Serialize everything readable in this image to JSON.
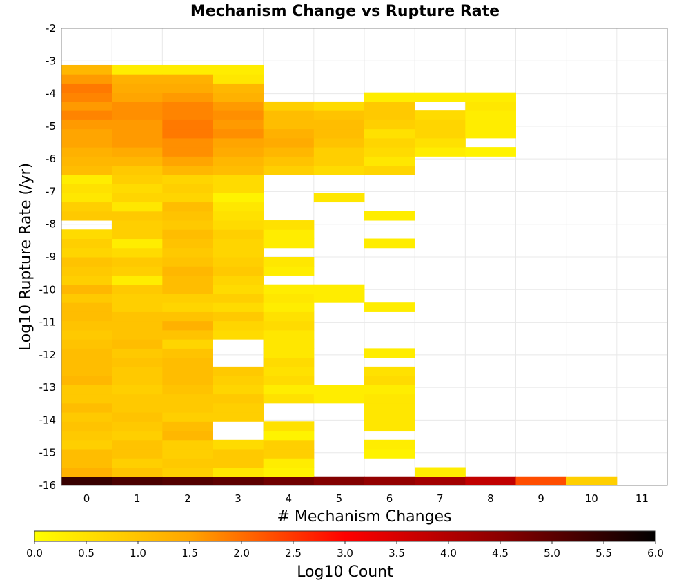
{
  "chart_data": {
    "type": "heatmap",
    "title": "Mechanism Change vs Rupture Rate",
    "xlabel": "# Mechanism Changes",
    "ylabel": "Log10 Rupture Rate (/yr)",
    "x_categories": [
      "0",
      "1",
      "2",
      "3",
      "4",
      "5",
      "6",
      "7",
      "8",
      "9",
      "10",
      "11"
    ],
    "ylim": [
      -16,
      -2
    ],
    "y_ticks": [
      "-2",
      "-3",
      "-4",
      "-5",
      "-6",
      "-7",
      "-8",
      "-9",
      "-10",
      "-11",
      "-12",
      "-13",
      "-14",
      "-15",
      "-16"
    ],
    "bin_size": 0.28,
    "bins_start": -16.0,
    "grid": true,
    "colorbar": {
      "label": "Log10 Count",
      "range": [
        0.0,
        6.0
      ],
      "ticks": [
        "0.0",
        "0.5",
        "1.0",
        "1.5",
        "2.0",
        "2.5",
        "3.0",
        "3.5",
        "4.0",
        "4.5",
        "5.0",
        "5.5",
        "6.0"
      ],
      "colors": [
        "#ffff00",
        "#ffa500",
        "#ff0000",
        "#8b0000",
        "#000000"
      ]
    },
    "series": [
      {
        "x": "0",
        "values": [
          5.4,
          1.3,
          1.1,
          1.1,
          0.8,
          0.9,
          1.0,
          0.9,
          1.1,
          0.9,
          0.9,
          1.2,
          1.1,
          1.1,
          1.1,
          1.0,
          0.9,
          1.0,
          1.1,
          1.1,
          0.9,
          1.2,
          0.8,
          0.9,
          1.0,
          0.7,
          0.8,
          0.6,
          null,
          0.9,
          0.8,
          0.4,
          0.5,
          0.3,
          1.1,
          1.2,
          1.3,
          1.5,
          1.5,
          1.6,
          1.8,
          1.6,
          1.8,
          1.9,
          1.6,
          1.2
        ]
      },
      {
        "x": "1",
        "values": [
          5.2,
          1.0,
          0.8,
          1.0,
          1.0,
          0.8,
          0.9,
          1.0,
          0.9,
          0.9,
          0.8,
          0.9,
          0.9,
          1.0,
          0.9,
          1.1,
          1.0,
          1.0,
          1.0,
          0.8,
          0.8,
          0.9,
          0.3,
          0.8,
          0.9,
          0.6,
          0.3,
          0.8,
          0.8,
          0.9,
          0.4,
          0.7,
          0.6,
          0.8,
          0.9,
          1.2,
          1.4,
          1.6,
          1.6,
          1.6,
          1.7,
          1.7,
          1.5,
          1.4,
          1.3,
          0.3
        ]
      },
      {
        "x": "2",
        "values": [
          5.1,
          0.8,
          0.9,
          0.8,
          0.8,
          1.2,
          1.1,
          0.8,
          0.9,
          0.9,
          1.0,
          1.1,
          1.1,
          1.1,
          1.0,
          0.7,
          1.0,
          1.3,
          1.0,
          0.7,
          0.8,
          1.1,
          1.1,
          1.2,
          1.0,
          0.9,
          1.0,
          1.1,
          0.9,
          1.0,
          1.1,
          0.7,
          0.8,
          0.7,
          1.2,
          1.5,
          1.7,
          1.7,
          1.9,
          1.9,
          1.8,
          1.8,
          1.6,
          1.4,
          1.3,
          0.3
        ]
      },
      {
        "x": "3",
        "values": [
          5.0,
          0.4,
          0.9,
          0.9,
          0.6,
          null,
          null,
          0.8,
          0.8,
          0.9,
          0.7,
          0.8,
          0.9,
          null,
          null,
          null,
          0.6,
          0.7,
          0.9,
          0.6,
          0.8,
          0.6,
          0.7,
          0.9,
          0.8,
          0.7,
          0.7,
          0.8,
          0.6,
          0.5,
          0.4,
          0.2,
          0.6,
          0.6,
          1.1,
          1.2,
          1.4,
          1.5,
          1.7,
          1.6,
          1.7,
          1.6,
          1.3,
          1.2,
          0.4,
          0.3
        ]
      },
      {
        "x": "4",
        "values": [
          4.8,
          0.2,
          0.3,
          0.8,
          0.8,
          0.2,
          0.5,
          null,
          null,
          0.5,
          0.3,
          0.6,
          0.5,
          0.6,
          0.4,
          0.4,
          0.4,
          0.6,
          0.5,
          0.3,
          0.4,
          0.3,
          null,
          0.3,
          0.4,
          null,
          0.3,
          0.3,
          0.5,
          null,
          null,
          null,
          null,
          null,
          0.8,
          1.0,
          1.2,
          1.4,
          1.3,
          1.1,
          1.1,
          0.8,
          null,
          null,
          null,
          null
        ]
      },
      {
        "x": "5",
        "values": [
          4.6,
          null,
          null,
          null,
          null,
          null,
          null,
          null,
          null,
          0.3,
          0.3,
          null,
          null,
          null,
          null,
          null,
          null,
          null,
          null,
          null,
          0.3,
          0.3,
          null,
          null,
          null,
          null,
          null,
          null,
          null,
          null,
          null,
          0.4,
          null,
          null,
          0.6,
          0.8,
          0.8,
          1.0,
          1.1,
          1.1,
          1.0,
          0.6,
          null,
          null,
          null,
          null
        ]
      },
      {
        "x": "6",
        "values": [
          4.4,
          null,
          null,
          0.2,
          0.3,
          null,
          0.4,
          0.4,
          0.4,
          0.4,
          0.3,
          0.6,
          0.5,
          null,
          0.3,
          null,
          null,
          null,
          null,
          0.3,
          null,
          null,
          null,
          null,
          null,
          null,
          0.3,
          null,
          null,
          0.3,
          null,
          null,
          null,
          null,
          0.7,
          0.4,
          0.6,
          0.7,
          0.5,
          0.8,
          0.9,
          0.9,
          0.3,
          null,
          null,
          null
        ]
      },
      {
        "x": "7",
        "values": [
          4.2,
          0.3,
          null,
          null,
          null,
          null,
          null,
          null,
          null,
          null,
          null,
          null,
          null,
          null,
          null,
          null,
          null,
          null,
          null,
          null,
          null,
          null,
          null,
          null,
          null,
          null,
          null,
          null,
          null,
          null,
          null,
          null,
          null,
          null,
          null,
          null,
          0.3,
          0.5,
          0.7,
          0.7,
          0.6,
          null,
          0.3,
          null,
          null,
          null
        ]
      },
      {
        "x": "8",
        "values": [
          3.8,
          null,
          null,
          null,
          null,
          null,
          null,
          null,
          null,
          null,
          null,
          null,
          null,
          null,
          null,
          null,
          null,
          null,
          null,
          null,
          null,
          null,
          null,
          null,
          null,
          null,
          null,
          null,
          null,
          null,
          null,
          null,
          null,
          null,
          null,
          null,
          0.2,
          null,
          0.3,
          0.3,
          0.3,
          0.4,
          0.3,
          null,
          null,
          null
        ]
      },
      {
        "x": "9",
        "values": [
          2.3,
          null,
          null,
          null,
          null,
          null,
          null,
          null,
          null,
          null,
          null,
          null,
          null,
          null,
          null,
          null,
          null,
          null,
          null,
          null,
          null,
          null,
          null,
          null,
          null,
          null,
          null,
          null,
          null,
          null,
          null,
          null,
          null,
          null,
          null,
          null,
          null,
          null,
          null,
          null,
          null,
          null,
          null,
          null,
          null,
          null
        ]
      },
      {
        "x": "10",
        "values": [
          0.8,
          null,
          null,
          null,
          null,
          null,
          null,
          null,
          null,
          null,
          null,
          null,
          null,
          null,
          null,
          null,
          null,
          null,
          null,
          null,
          null,
          null,
          null,
          null,
          null,
          null,
          null,
          null,
          null,
          null,
          null,
          null,
          null,
          null,
          null,
          null,
          null,
          null,
          null,
          null,
          null,
          null,
          null,
          null,
          null,
          null
        ]
      },
      {
        "x": "11",
        "values": [
          null,
          null,
          null,
          null,
          null,
          null,
          null,
          null,
          null,
          null,
          null,
          null,
          null,
          null,
          null,
          null,
          null,
          null,
          null,
          null,
          null,
          null,
          null,
          null,
          null,
          null,
          null,
          null,
          null,
          null,
          null,
          null,
          null,
          null,
          null,
          null,
          null,
          null,
          null,
          null,
          null,
          null,
          null,
          null,
          null,
          null
        ]
      }
    ]
  }
}
